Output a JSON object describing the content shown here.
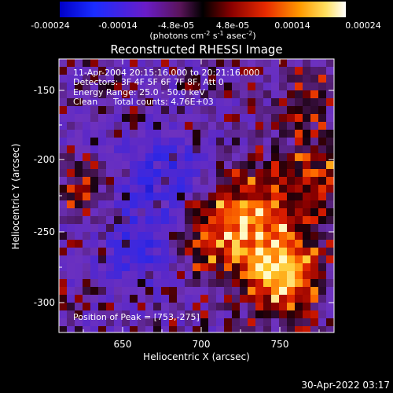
{
  "colorbar": {
    "ticks": [
      "-0.00024",
      "-0.00014",
      "-4.8e-05",
      "4.8e-05",
      "0.00014",
      "0.00024"
    ],
    "units_main": "(photons cm",
    "units_exp1": "-2",
    "units_mid": " s",
    "units_exp2": "-1",
    "units_end": " asec",
    "units_exp3": "-2",
    "units_close": ")"
  },
  "title": "Reconstructed RHESSI Image",
  "info": {
    "line1": "11-Apr-2004 20:15:16.000 to 20:21:16.000",
    "line2": "Detectors: 3F 4F 5F 6F 7F 8F, Att 0",
    "line3": "Energy Range: 25.0 - 50.0 keV",
    "line4a": "Clean",
    "line4b": "Total counts: 4.76E+03"
  },
  "peak_label": "Position of Peak = [753,-275]",
  "axes": {
    "xlabel": "Heliocentric X (arcsec)",
    "ylabel": "Heliocentric Y (arcsec)",
    "xticks": [
      "650",
      "700",
      "750"
    ],
    "yticks": [
      "-150",
      "-200",
      "-250",
      "-300"
    ]
  },
  "footer_date": "30-Apr-2022 03:17"
}
